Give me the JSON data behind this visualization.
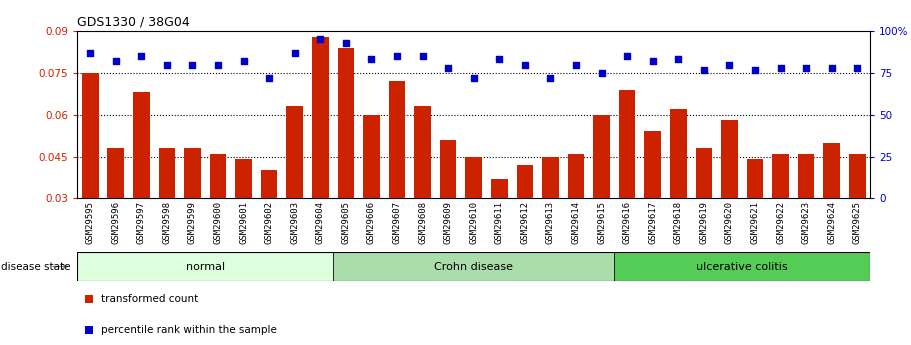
{
  "title": "GDS1330 / 38G04",
  "categories": [
    "GSM29595",
    "GSM29596",
    "GSM29597",
    "GSM29598",
    "GSM29599",
    "GSM29600",
    "GSM29601",
    "GSM29602",
    "GSM29603",
    "GSM29604",
    "GSM29605",
    "GSM29606",
    "GSM29607",
    "GSM29608",
    "GSM29609",
    "GSM29610",
    "GSM29611",
    "GSM29612",
    "GSM29613",
    "GSM29614",
    "GSM29615",
    "GSM29616",
    "GSM29617",
    "GSM29618",
    "GSM29619",
    "GSM29620",
    "GSM29621",
    "GSM29622",
    "GSM29623",
    "GSM29624",
    "GSM29625"
  ],
  "bar_values": [
    0.075,
    0.048,
    0.068,
    0.048,
    0.048,
    0.046,
    0.044,
    0.04,
    0.063,
    0.088,
    0.084,
    0.06,
    0.072,
    0.063,
    0.051,
    0.045,
    0.037,
    0.042,
    0.045,
    0.046,
    0.06,
    0.069,
    0.054,
    0.062,
    0.048,
    0.058,
    0.044,
    0.046,
    0.046,
    0.05,
    0.046
  ],
  "percentile_values": [
    87,
    82,
    85,
    80,
    80,
    80,
    82,
    72,
    87,
    95,
    93,
    83,
    85,
    85,
    78,
    72,
    83,
    80,
    72,
    80,
    75,
    85,
    82,
    83,
    77,
    80,
    77,
    78,
    78,
    78,
    78
  ],
  "bar_color": "#cc2200",
  "dot_color": "#0000cc",
  "bar_bottom": 0.03,
  "ylim_left": [
    0.03,
    0.09
  ],
  "ylim_right": [
    0,
    100
  ],
  "yticks_left": [
    0.03,
    0.045,
    0.06,
    0.075,
    0.09
  ],
  "ytick_labels_left": [
    "0.03",
    "0.045",
    "0.06",
    "0.075",
    "0.09"
  ],
  "yticks_right": [
    0,
    25,
    50,
    75,
    100
  ],
  "ytick_labels_right": [
    "0",
    "25",
    "50",
    "75",
    "100%"
  ],
  "hlines": [
    0.045,
    0.06,
    0.075
  ],
  "disease_groups": [
    {
      "label": "normal",
      "start": 0,
      "end": 10,
      "color": "#ddffdd"
    },
    {
      "label": "Crohn disease",
      "start": 10,
      "end": 21,
      "color": "#aaeea a"
    },
    {
      "label": "ulcerative colitis",
      "start": 21,
      "end": 31,
      "color": "#55dd55"
    }
  ],
  "legend_items": [
    {
      "label": "transformed count",
      "color": "#cc2200",
      "marker": "s"
    },
    {
      "label": "percentile rank within the sample",
      "color": "#0000cc",
      "marker": "s"
    }
  ],
  "disease_state_label": "disease state",
  "bg_color": "#ffffff",
  "axis_label_color_left": "#cc2200",
  "axis_label_color_right": "#0000cc",
  "xtick_bg_color": "#cccccc"
}
